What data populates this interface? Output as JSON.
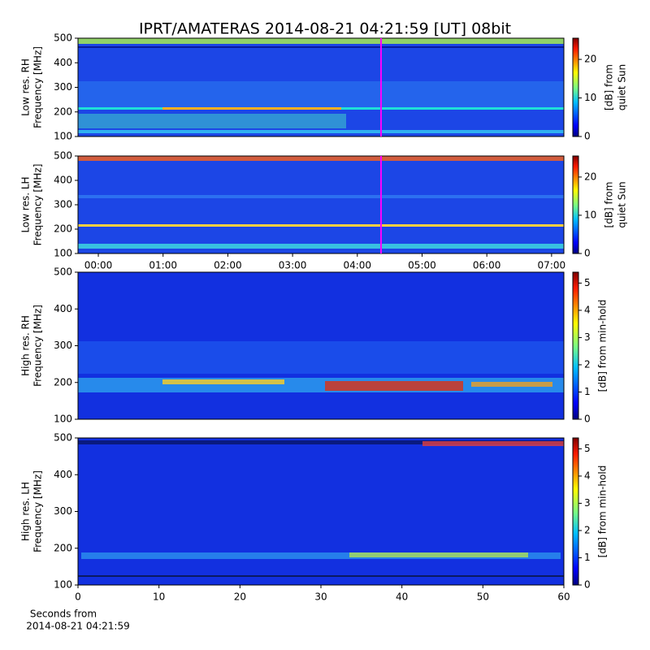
{
  "title": "IPRT/AMATERAS 2014-08-21 04:21:59 [UT]   08bit",
  "chart_data": [
    {
      "type": "heatmap",
      "ylabel": [
        "Low res. RH",
        "Frequency [MHz]"
      ],
      "ylim": [
        100,
        500
      ],
      "yticks": [
        100,
        200,
        300,
        400,
        500
      ],
      "xlim": [
        -0.314,
        7.19
      ],
      "marker": 4.366,
      "marker_color": "#ff00ff",
      "colorbar": {
        "clim": [
          0,
          25.5
        ],
        "cticks": [
          0,
          10,
          20
        ],
        "label": [
          "[dB] from",
          "quiet Sun"
        ]
      }
    },
    {
      "type": "heatmap",
      "ylabel": [
        "Low res. LH",
        "Frequency [MHz]"
      ],
      "ylim": [
        100,
        500
      ],
      "yticks": [
        100,
        200,
        300,
        400,
        500
      ],
      "xlim": [
        -0.314,
        7.19
      ],
      "marker": 4.366,
      "marker_color": "#ff00ff",
      "xticks": [
        {
          "value": 0,
          "label": "00:00"
        },
        {
          "value": 1,
          "label": "01:00"
        },
        {
          "value": 2,
          "label": "02:00"
        },
        {
          "value": 3,
          "label": "03:00"
        },
        {
          "value": 4,
          "label": "04:00"
        },
        {
          "value": 5,
          "label": "05:00"
        },
        {
          "value": 6,
          "label": "06:00"
        },
        {
          "value": 7,
          "label": "07:00"
        }
      ],
      "colorbar": {
        "clim": [
          0,
          25.5
        ],
        "cticks": [
          0,
          10,
          20
        ],
        "label": [
          "[dB] from",
          "quiet Sun"
        ]
      }
    },
    {
      "type": "heatmap",
      "ylabel": [
        "High res. RH",
        "Frequency [MHz]"
      ],
      "ylim": [
        100,
        500
      ],
      "yticks": [
        100,
        200,
        300,
        400,
        500
      ],
      "xlim": [
        0,
        60
      ],
      "colorbar": {
        "clim": [
          0,
          5.4
        ],
        "cticks": [
          0,
          1,
          2,
          3,
          4,
          5
        ],
        "label": [
          "[dB] from min-hold"
        ]
      }
    },
    {
      "type": "heatmap",
      "ylabel": [
        "High res. LH",
        "Frequency [MHz]"
      ],
      "ylim": [
        100,
        500
      ],
      "yticks": [
        100,
        200,
        300,
        400,
        500
      ],
      "xlim": [
        0,
        60
      ],
      "xticks": [
        0,
        10,
        20,
        30,
        40,
        50,
        60
      ],
      "xlabel": [
        "Seconds from",
        "2014-08-21 04:21:59"
      ],
      "colorbar": {
        "clim": [
          0,
          5.4
        ],
        "cticks": [
          0,
          1,
          2,
          3,
          4,
          5
        ],
        "label": [
          "[dB] from min-hold"
        ]
      }
    }
  ]
}
